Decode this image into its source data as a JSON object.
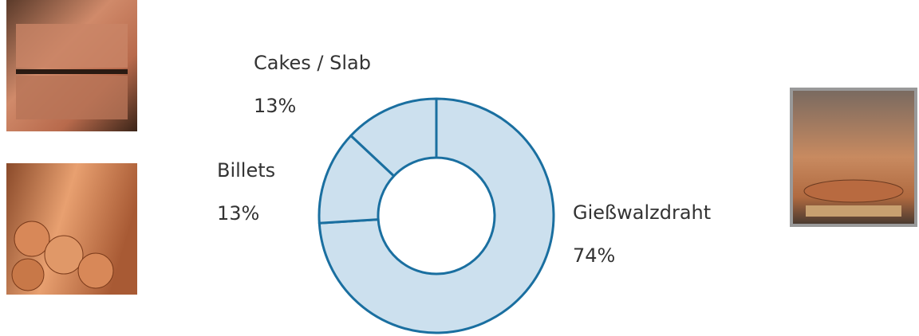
{
  "chart_data": {
    "type": "donut",
    "categories": [
      "Gießwalzdraht",
      "Billets",
      "Cakes / Slab"
    ],
    "values": [
      74,
      13,
      13
    ],
    "value_labels": [
      "74%",
      "13%",
      "13%"
    ],
    "color": "#cce0ee",
    "edge_color": "#1a6fa0"
  }
}
